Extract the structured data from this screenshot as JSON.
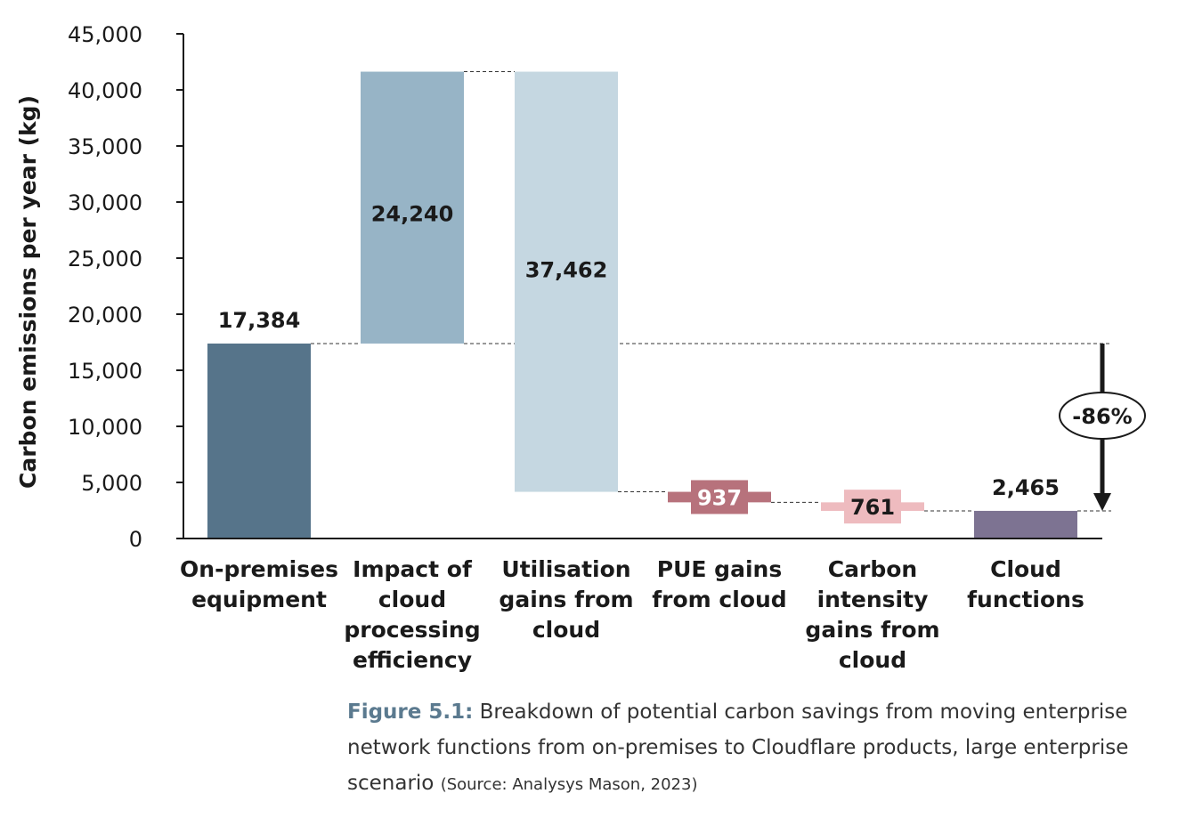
{
  "chart_data": {
    "type": "waterfall",
    "ylabel": "Carbon emissions per year (kg)",
    "ylim": [
      0,
      45000
    ],
    "yticks": [
      0,
      5000,
      10000,
      15000,
      20000,
      25000,
      30000,
      35000,
      40000,
      45000
    ],
    "ytick_labels": [
      "0",
      "5,000",
      "10,000",
      "15,000",
      "20,000",
      "25,000",
      "30,000",
      "35,000",
      "40,000",
      "45,000"
    ],
    "bars": [
      {
        "name": "on-premises",
        "lines": [
          "On-premises",
          "equipment"
        ],
        "start": 0,
        "end": 17384,
        "label": "17,384",
        "color": "#56748a",
        "style": "bar",
        "label_pos": "above"
      },
      {
        "name": "processing",
        "lines": [
          "Impact of",
          "cloud",
          "processing",
          "efficiency"
        ],
        "start": 17384,
        "end": 41624,
        "label": "24,240",
        "color": "#97b4c6",
        "style": "bar",
        "label_pos": "inside"
      },
      {
        "name": "utilisation",
        "lines": [
          "Utilisation",
          "gains from",
          "cloud"
        ],
        "start": 41624,
        "end": 4162,
        "label": "37,462",
        "color": "#c5d7e1",
        "style": "bar",
        "label_pos": "inside"
      },
      {
        "name": "pue",
        "lines": [
          "PUE gains",
          "from cloud"
        ],
        "start": 4162,
        "end": 3225,
        "label": "937",
        "color": "#b7727c",
        "style": "small",
        "label_pos": "badge",
        "label_color": "white"
      },
      {
        "name": "carbon-intensity",
        "lines": [
          "Carbon",
          "intensity",
          "gains from",
          "cloud"
        ],
        "start": 3225,
        "end": 2465,
        "label": "761",
        "color": "#eebbbf",
        "style": "small",
        "label_pos": "badge",
        "label_color": "dark"
      },
      {
        "name": "cloud-functions",
        "lines": [
          "Cloud",
          "functions"
        ],
        "start": 0,
        "end": 2465,
        "label": "2,465",
        "color": "#7d7392",
        "style": "bar",
        "label_pos": "above"
      }
    ],
    "annotation": {
      "text": "-86%",
      "from": 17384,
      "to": 2465
    }
  },
  "caption": {
    "figure_label": "Figure 5.1:",
    "text": "Breakdown of potential carbon savings from moving enterprise network functions from on-premises to Cloudflare products, large enterprise scenario",
    "source": "(Source: Analysys Mason, 2023)"
  }
}
